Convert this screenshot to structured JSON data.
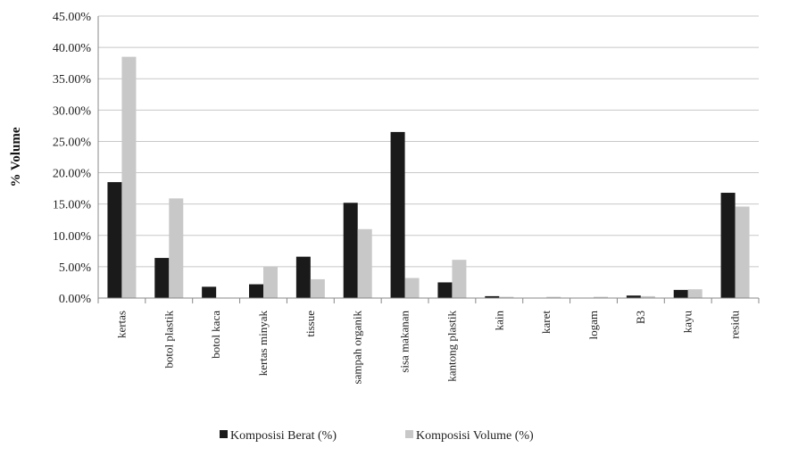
{
  "chart_data": {
    "type": "bar",
    "title": "",
    "xlabel": "",
    "ylabel": "% Volume",
    "ylim": [
      0,
      45
    ],
    "yticks": [
      "0.00%",
      "5.00%",
      "10.00%",
      "15.00%",
      "20.00%",
      "25.00%",
      "30.00%",
      "35.00%",
      "40.00%",
      "45.00%"
    ],
    "grid": true,
    "legend_position": "bottom",
    "categories": [
      "kertas",
      "botol plastik",
      "botol kaca",
      "kertas minyak",
      "tissue",
      "sampah organik",
      "sisa makanan",
      "kantong plastik",
      "kain",
      "karet",
      "logam",
      "B3",
      "kayu",
      "residu"
    ],
    "series": [
      {
        "name": "Komposisi Berat (%)",
        "color": "#1a1a1a",
        "values": [
          18.5,
          6.4,
          1.8,
          2.2,
          6.6,
          15.2,
          26.5,
          2.5,
          0.3,
          0.0,
          0.0,
          0.4,
          1.3,
          16.8
        ]
      },
      {
        "name": "Komposisi Volume (%)",
        "color": "#c8c8c8",
        "values": [
          38.5,
          15.9,
          0.0,
          5.0,
          3.0,
          11.0,
          3.2,
          6.1,
          0.2,
          0.2,
          0.2,
          0.3,
          1.4,
          14.6
        ]
      }
    ]
  }
}
